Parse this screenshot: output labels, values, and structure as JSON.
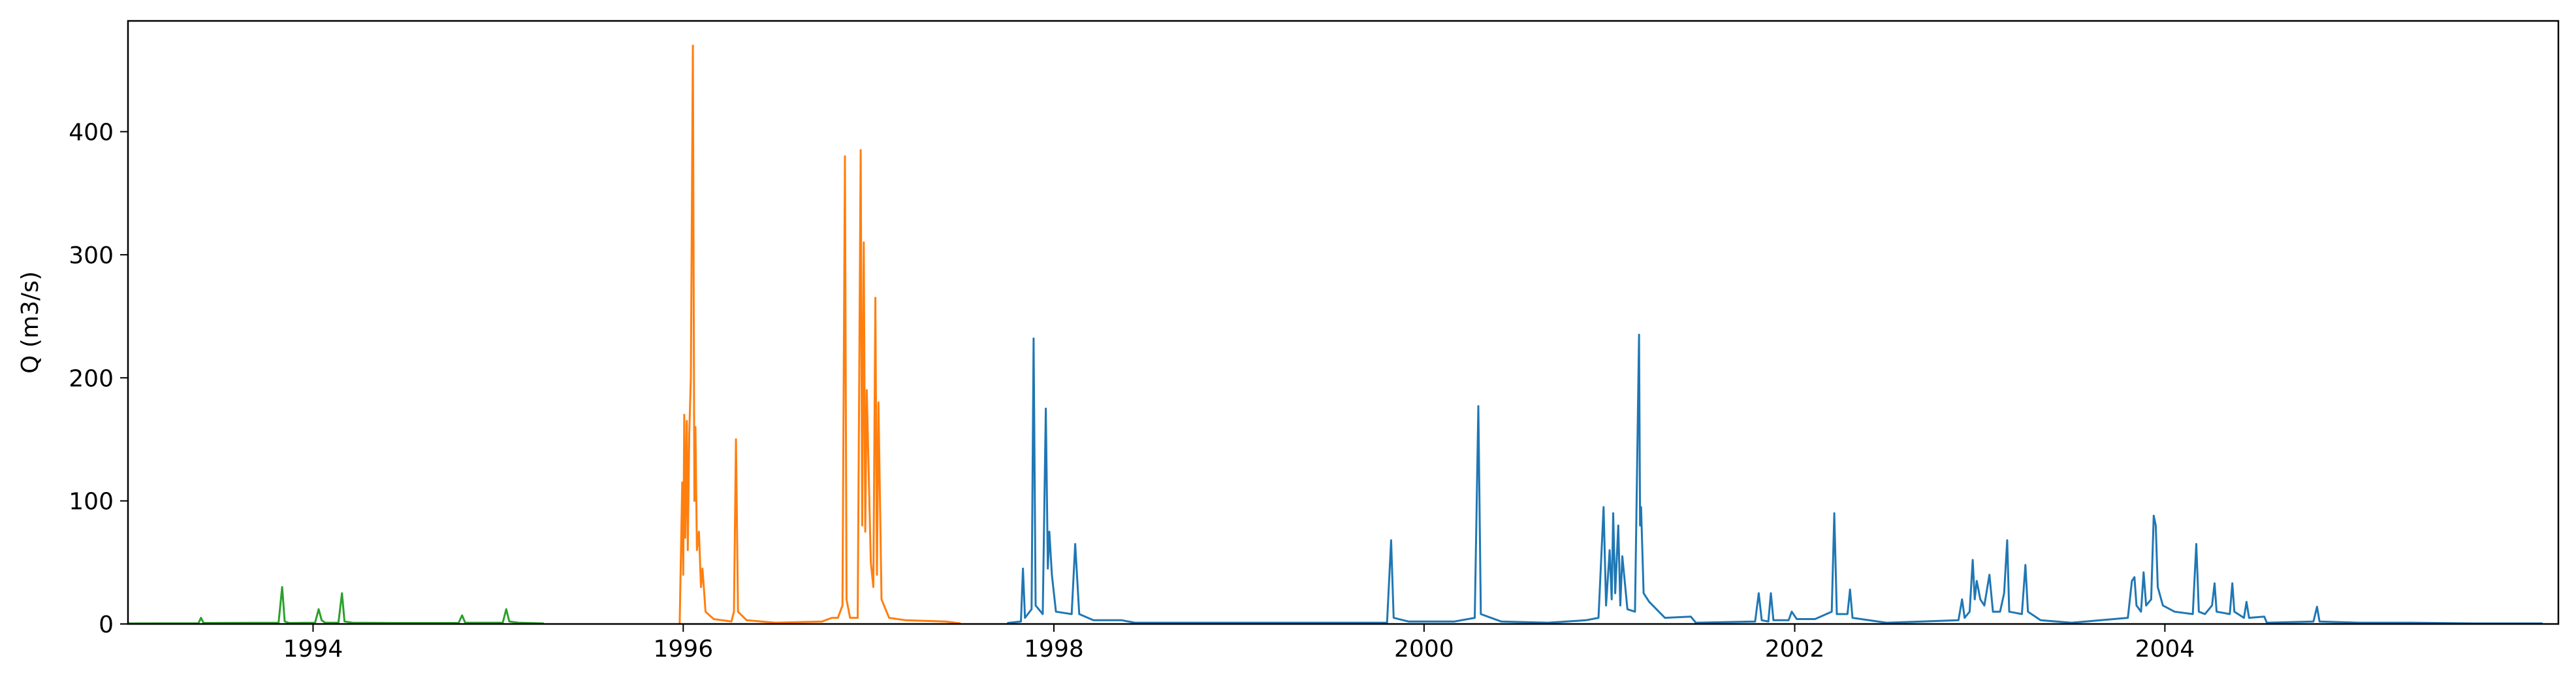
{
  "chart_data": {
    "type": "line",
    "title": "",
    "xlabel": "",
    "ylabel": "Q (m3/s)",
    "x_axis": "date",
    "xlim": [
      "1993-01-01",
      "2006-02-15"
    ],
    "ylim": [
      0,
      490
    ],
    "xticks": [
      {
        "label": "1994",
        "date": "1994-01-01"
      },
      {
        "label": "1996",
        "date": "1996-01-01"
      },
      {
        "label": "1998",
        "date": "1998-01-01"
      },
      {
        "label": "2000",
        "date": "2000-01-01"
      },
      {
        "label": "2002",
        "date": "2002-01-01"
      },
      {
        "label": "2004",
        "date": "2004-01-01"
      }
    ],
    "yticks": [
      0,
      100,
      200,
      300,
      400
    ],
    "grid": false,
    "legend": "none",
    "series": [
      {
        "color": "#2ca02c",
        "points": [
          [
            "1993-01-01",
            0.5
          ],
          [
            "1993-05-20",
            0.6
          ],
          [
            "1993-05-25",
            5
          ],
          [
            "1993-05-30",
            0.8
          ],
          [
            "1993-10-25",
            1.0
          ],
          [
            "1993-11-01",
            30
          ],
          [
            "1993-11-06",
            2
          ],
          [
            "1993-11-15",
            0.8
          ],
          [
            "1994-01-05",
            1.0
          ],
          [
            "1994-01-12",
            12
          ],
          [
            "1994-01-18",
            3
          ],
          [
            "1994-01-25",
            1
          ],
          [
            "1994-02-20",
            1.0
          ],
          [
            "1994-02-27",
            25
          ],
          [
            "1994-03-04",
            2
          ],
          [
            "1994-03-20",
            1
          ],
          [
            "1994-06-15",
            0.8
          ],
          [
            "1994-10-15",
            0.8
          ],
          [
            "1994-10-22",
            7
          ],
          [
            "1994-10-28",
            1
          ],
          [
            "1995-01-10",
            1.0
          ],
          [
            "1995-01-17",
            12
          ],
          [
            "1995-01-23",
            2
          ],
          [
            "1995-02-10",
            1
          ],
          [
            "1995-04-01",
            0.5
          ]
        ]
      },
      {
        "color": "#ff7f0e",
        "points": [
          [
            "1995-12-25",
            0.5
          ],
          [
            "1995-12-30",
            115
          ],
          [
            "1996-01-01",
            40
          ],
          [
            "1996-01-03",
            170
          ],
          [
            "1996-01-05",
            70
          ],
          [
            "1996-01-08",
            165
          ],
          [
            "1996-01-10",
            60
          ],
          [
            "1996-01-13",
            155
          ],
          [
            "1996-01-16",
            200
          ],
          [
            "1996-01-20",
            470
          ],
          [
            "1996-01-23",
            100
          ],
          [
            "1996-01-25",
            160
          ],
          [
            "1996-01-28",
            60
          ],
          [
            "1996-02-01",
            75
          ],
          [
            "1996-02-05",
            30
          ],
          [
            "1996-02-08",
            45
          ],
          [
            "1996-02-14",
            10
          ],
          [
            "1996-03-01",
            4
          ],
          [
            "1996-04-05",
            2
          ],
          [
            "1996-04-10",
            10
          ],
          [
            "1996-04-14",
            150
          ],
          [
            "1996-04-18",
            10
          ],
          [
            "1996-05-05",
            3
          ],
          [
            "1996-07-01",
            1
          ],
          [
            "1996-10-01",
            2
          ],
          [
            "1996-10-20",
            5
          ],
          [
            "1996-11-01",
            5
          ],
          [
            "1996-11-10",
            15
          ],
          [
            "1996-11-15",
            380
          ],
          [
            "1996-11-18",
            20
          ],
          [
            "1996-11-25",
            5
          ],
          [
            "1996-12-10",
            5
          ],
          [
            "1996-12-16",
            385
          ],
          [
            "1996-12-19",
            80
          ],
          [
            "1996-12-22",
            310
          ],
          [
            "1996-12-25",
            75
          ],
          [
            "1996-12-28",
            190
          ],
          [
            "1997-01-05",
            50
          ],
          [
            "1997-01-10",
            30
          ],
          [
            "1997-01-14",
            265
          ],
          [
            "1997-01-17",
            40
          ],
          [
            "1997-01-20",
            180
          ],
          [
            "1997-01-26",
            20
          ],
          [
            "1997-02-10",
            5
          ],
          [
            "1997-03-15",
            3
          ],
          [
            "1997-06-01",
            2
          ],
          [
            "1997-07-01",
            0.5
          ]
        ]
      },
      {
        "color": "#1f77b4",
        "points": [
          [
            "1997-10-01",
            0.8
          ],
          [
            "1997-10-28",
            2
          ],
          [
            "1997-11-01",
            45
          ],
          [
            "1997-11-05",
            5
          ],
          [
            "1997-11-18",
            12
          ],
          [
            "1997-11-22",
            232
          ],
          [
            "1997-11-26",
            15
          ],
          [
            "1997-12-10",
            8
          ],
          [
            "1997-12-16",
            175
          ],
          [
            "1997-12-20",
            45
          ],
          [
            "1997-12-23",
            75
          ],
          [
            "1997-12-28",
            40
          ],
          [
            "1998-01-05",
            10
          ],
          [
            "1998-02-05",
            8
          ],
          [
            "1998-02-12",
            65
          ],
          [
            "1998-02-20",
            8
          ],
          [
            "1998-03-20",
            3
          ],
          [
            "1998-05-15",
            3
          ],
          [
            "1998-06-10",
            1
          ],
          [
            "1999-01-10",
            1
          ],
          [
            "1999-04-01",
            1
          ],
          [
            "1999-10-20",
            1
          ],
          [
            "1999-10-28",
            68
          ],
          [
            "1999-11-02",
            5
          ],
          [
            "1999-12-01",
            2
          ],
          [
            "2000-03-01",
            2
          ],
          [
            "2000-04-10",
            5
          ],
          [
            "2000-04-17",
            177
          ],
          [
            "2000-04-22",
            8
          ],
          [
            "2000-06-01",
            2
          ],
          [
            "2000-09-01",
            1
          ],
          [
            "2000-11-15",
            3
          ],
          [
            "2000-12-10",
            5
          ],
          [
            "2000-12-20",
            95
          ],
          [
            "2000-12-25",
            15
          ],
          [
            "2001-01-01",
            60
          ],
          [
            "2001-01-05",
            20
          ],
          [
            "2001-01-08",
            90
          ],
          [
            "2001-01-12",
            25
          ],
          [
            "2001-01-18",
            80
          ],
          [
            "2001-01-22",
            15
          ],
          [
            "2001-01-26",
            55
          ],
          [
            "2001-02-05",
            12
          ],
          [
            "2001-02-20",
            10
          ],
          [
            "2001-02-28",
            235
          ],
          [
            "2001-03-02",
            80
          ],
          [
            "2001-03-04",
            95
          ],
          [
            "2001-03-09",
            25
          ],
          [
            "2001-03-20",
            18
          ],
          [
            "2001-04-20",
            5
          ],
          [
            "2001-06-10",
            6
          ],
          [
            "2001-06-20",
            1
          ],
          [
            "2001-10-15",
            2
          ],
          [
            "2001-10-22",
            25
          ],
          [
            "2001-10-28",
            3
          ],
          [
            "2001-11-10",
            2
          ],
          [
            "2001-11-15",
            25
          ],
          [
            "2001-11-20",
            3
          ],
          [
            "2001-12-20",
            3
          ],
          [
            "2001-12-26",
            10
          ],
          [
            "2002-01-05",
            4
          ],
          [
            "2002-02-10",
            4
          ],
          [
            "2002-03-15",
            10
          ],
          [
            "2002-03-20",
            90
          ],
          [
            "2002-03-25",
            8
          ],
          [
            "2002-04-15",
            8
          ],
          [
            "2002-04-20",
            28
          ],
          [
            "2002-04-25",
            5
          ],
          [
            "2002-07-01",
            1
          ],
          [
            "2002-11-20",
            3
          ],
          [
            "2002-11-27",
            20
          ],
          [
            "2002-12-02",
            5
          ],
          [
            "2002-12-12",
            10
          ],
          [
            "2002-12-18",
            52
          ],
          [
            "2002-12-22",
            20
          ],
          [
            "2002-12-26",
            35
          ],
          [
            "2003-01-02",
            20
          ],
          [
            "2003-01-10",
            15
          ],
          [
            "2003-01-20",
            40
          ],
          [
            "2003-01-27",
            10
          ],
          [
            "2003-02-10",
            10
          ],
          [
            "2003-02-18",
            25
          ],
          [
            "2003-02-24",
            68
          ],
          [
            "2003-02-28",
            10
          ],
          [
            "2003-03-25",
            8
          ],
          [
            "2003-04-01",
            48
          ],
          [
            "2003-04-06",
            10
          ],
          [
            "2003-05-01",
            3
          ],
          [
            "2003-07-01",
            1
          ],
          [
            "2003-10-20",
            5
          ],
          [
            "2003-10-28",
            35
          ],
          [
            "2003-11-02",
            38
          ],
          [
            "2003-11-06",
            15
          ],
          [
            "2003-11-15",
            10
          ],
          [
            "2003-11-20",
            42
          ],
          [
            "2003-11-25",
            15
          ],
          [
            "2003-12-05",
            20
          ],
          [
            "2003-12-10",
            88
          ],
          [
            "2003-12-14",
            80
          ],
          [
            "2003-12-18",
            30
          ],
          [
            "2003-12-28",
            15
          ],
          [
            "2004-01-20",
            10
          ],
          [
            "2004-02-25",
            8
          ],
          [
            "2004-03-03",
            65
          ],
          [
            "2004-03-08",
            10
          ],
          [
            "2004-03-20",
            8
          ],
          [
            "2004-04-03",
            15
          ],
          [
            "2004-04-08",
            33
          ],
          [
            "2004-04-12",
            10
          ],
          [
            "2004-05-08",
            8
          ],
          [
            "2004-05-13",
            33
          ],
          [
            "2004-05-17",
            10
          ],
          [
            "2004-06-05",
            5
          ],
          [
            "2004-06-10",
            18
          ],
          [
            "2004-06-15",
            5
          ],
          [
            "2004-07-15",
            6
          ],
          [
            "2004-07-20",
            1
          ],
          [
            "2004-10-20",
            2
          ],
          [
            "2004-10-27",
            14
          ],
          [
            "2004-11-01",
            2
          ],
          [
            "2005-01-20",
            1
          ],
          [
            "2005-03-10",
            1
          ],
          [
            "2005-05-01",
            1
          ],
          [
            "2005-09-01",
            0.5
          ],
          [
            "2006-01-15",
            0.5
          ]
        ]
      }
    ]
  }
}
